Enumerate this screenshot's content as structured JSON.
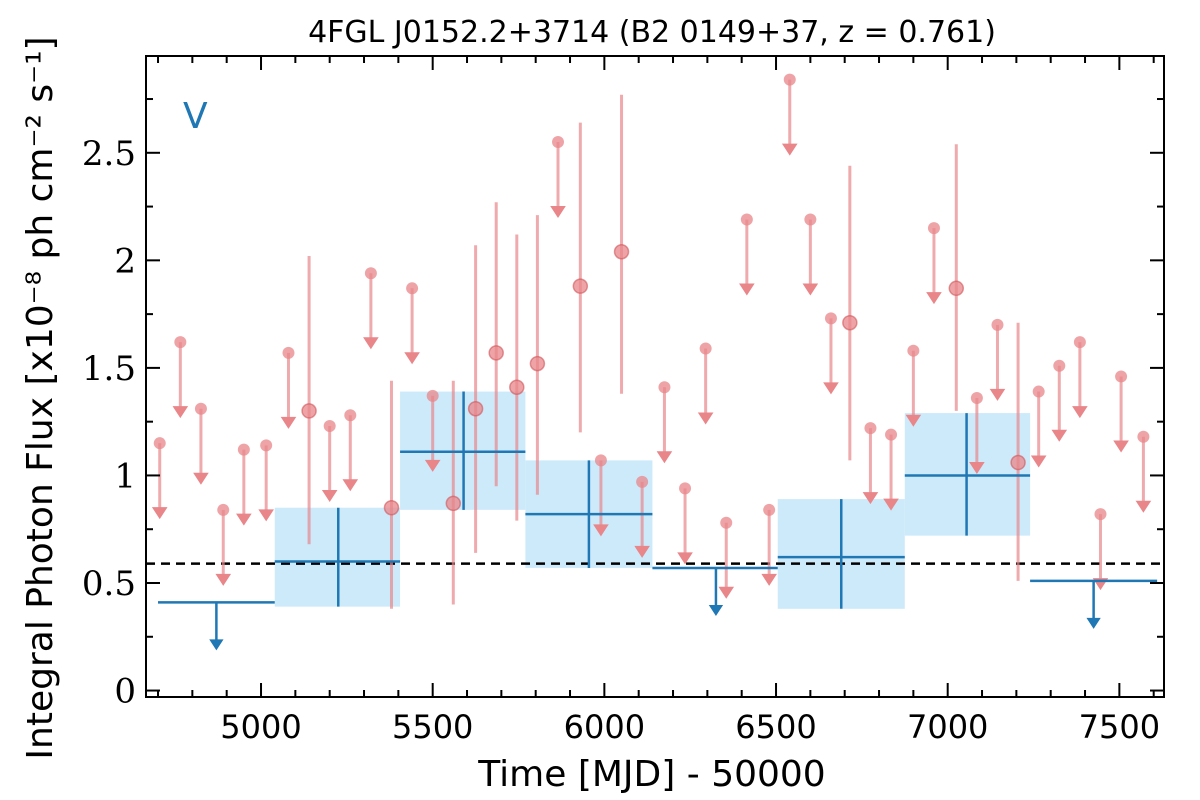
{
  "chart_data": {
    "type": "scatter",
    "title": "4FGL J0152.2+3714 (B2 0149+37, z = 0.761)",
    "xlabel": "Time [MJD] - 50000",
    "ylabel": "Integral Photon Flux [x10⁻⁸ ph cm⁻² s⁻¹]",
    "panel_label": "V",
    "xlim": [
      4665,
      7630
    ],
    "ylim": [
      -0.03,
      2.95
    ],
    "x_ticks": [
      5000,
      5500,
      6000,
      6500,
      7000,
      7500
    ],
    "x_tick_labels": [
      "5000",
      "5500",
      "6000",
      "6500",
      "7000",
      "7500"
    ],
    "y_ticks": [
      0,
      0.5,
      1,
      1.5,
      2,
      2.5
    ],
    "y_tick_labels": [
      "0",
      "0.5",
      "1",
      "1.5",
      "2",
      "2.5"
    ],
    "reference_line": 0.59,
    "colors": {
      "short_bins": "#e8868a",
      "long_bins": "#1f77b4",
      "band": "#cdeafb",
      "reference": "#000000"
    },
    "series": [
      {
        "kind": "short-bin detections",
        "points": [
          {
            "x": 5140,
            "y": 1.3,
            "ylo": 0.68,
            "yhi": 2.02
          },
          {
            "x": 5380,
            "y": 0.85,
            "ylo": 0.38,
            "yhi": 1.44
          },
          {
            "x": 5560,
            "y": 0.87,
            "ylo": 0.4,
            "yhi": 1.44
          },
          {
            "x": 5625,
            "y": 1.31,
            "ylo": 0.64,
            "yhi": 2.07
          },
          {
            "x": 5685,
            "y": 1.57,
            "ylo": 0.95,
            "yhi": 2.27
          },
          {
            "x": 5745,
            "y": 1.41,
            "ylo": 0.79,
            "yhi": 2.12
          },
          {
            "x": 5805,
            "y": 1.52,
            "ylo": 0.91,
            "yhi": 2.21
          },
          {
            "x": 5930,
            "y": 1.88,
            "ylo": 1.2,
            "yhi": 2.64
          },
          {
            "x": 6050,
            "y": 2.04,
            "ylo": 1.38,
            "yhi": 2.77
          },
          {
            "x": 6715,
            "y": 1.71,
            "ylo": 1.07,
            "yhi": 2.44
          },
          {
            "x": 7025,
            "y": 1.87,
            "ylo": 1.3,
            "yhi": 2.54
          },
          {
            "x": 7205,
            "y": 1.06,
            "ylo": 0.51,
            "yhi": 1.71
          }
        ]
      },
      {
        "kind": "short-bin upper limits",
        "points": [
          {
            "x": 4705,
            "y": 1.15
          },
          {
            "x": 4765,
            "y": 1.62
          },
          {
            "x": 4825,
            "y": 1.31
          },
          {
            "x": 4890,
            "y": 0.84
          },
          {
            "x": 4950,
            "y": 1.12
          },
          {
            "x": 5015,
            "y": 1.14
          },
          {
            "x": 5080,
            "y": 1.57
          },
          {
            "x": 5200,
            "y": 1.23
          },
          {
            "x": 5260,
            "y": 1.28
          },
          {
            "x": 5320,
            "y": 1.94
          },
          {
            "x": 5440,
            "y": 1.87
          },
          {
            "x": 5500,
            "y": 1.37
          },
          {
            "x": 5865,
            "y": 2.55
          },
          {
            "x": 5990,
            "y": 1.07
          },
          {
            "x": 6110,
            "y": 0.97
          },
          {
            "x": 6175,
            "y": 1.41
          },
          {
            "x": 6235,
            "y": 0.94
          },
          {
            "x": 6295,
            "y": 1.59
          },
          {
            "x": 6355,
            "y": 0.78
          },
          {
            "x": 6415,
            "y": 2.19
          },
          {
            "x": 6480,
            "y": 0.84
          },
          {
            "x": 6540,
            "y": 2.84
          },
          {
            "x": 6600,
            "y": 2.19
          },
          {
            "x": 6660,
            "y": 1.73
          },
          {
            "x": 6775,
            "y": 1.22
          },
          {
            "x": 6835,
            "y": 1.19
          },
          {
            "x": 6900,
            "y": 1.58
          },
          {
            "x": 6960,
            "y": 2.15
          },
          {
            "x": 7085,
            "y": 1.36
          },
          {
            "x": 7145,
            "y": 1.7
          },
          {
            "x": 7265,
            "y": 1.39
          },
          {
            "x": 7325,
            "y": 1.51
          },
          {
            "x": 7385,
            "y": 1.62
          },
          {
            "x": 7445,
            "y": 0.82
          },
          {
            "x": 7505,
            "y": 1.46
          },
          {
            "x": 7570,
            "y": 1.18
          }
        ]
      },
      {
        "kind": "long-bin detections",
        "points": [
          {
            "x0": 5040,
            "x1": 5405,
            "y": 0.6,
            "ylo": 0.39,
            "yhi": 0.85,
            "xc": 5225
          },
          {
            "x0": 5405,
            "x1": 5770,
            "y": 1.11,
            "ylo": 0.84,
            "yhi": 1.39,
            "xc": 5590
          },
          {
            "x0": 5770,
            "x1": 6140,
            "y": 0.82,
            "ylo": 0.57,
            "yhi": 1.07,
            "xc": 5955
          },
          {
            "x0": 6505,
            "x1": 6875,
            "y": 0.62,
            "ylo": 0.38,
            "yhi": 0.89,
            "xc": 6690
          },
          {
            "x0": 6875,
            "x1": 7240,
            "y": 1.0,
            "ylo": 0.72,
            "yhi": 1.29,
            "xc": 7055
          }
        ]
      },
      {
        "kind": "long-bin upper limits",
        "points": [
          {
            "x0": 4700,
            "x1": 5040,
            "y": 0.41,
            "xc": 4870
          },
          {
            "x0": 6140,
            "x1": 6505,
            "y": 0.57,
            "xc": 6325
          },
          {
            "x0": 7240,
            "x1": 7610,
            "y": 0.51,
            "xc": 7425
          }
        ]
      }
    ]
  }
}
